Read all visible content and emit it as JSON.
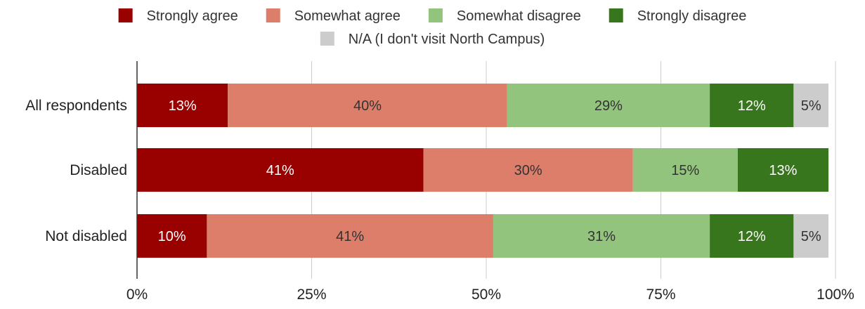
{
  "chart_data": {
    "type": "bar",
    "orientation": "horizontal",
    "stacked": "percent",
    "categories": [
      "All respondents",
      "Disabled",
      "Not disabled"
    ],
    "series": [
      {
        "name": "Strongly agree",
        "values": [
          13,
          41,
          10
        ],
        "labels": [
          "13%",
          "41%",
          "10%"
        ],
        "color": "#990000",
        "label_color": "#ffffff"
      },
      {
        "name": "Somewhat agree",
        "values": [
          40,
          30,
          41
        ],
        "labels": [
          "40%",
          "30%",
          "41%"
        ],
        "color": "#dd7e6b",
        "label_color": "#333333"
      },
      {
        "name": "Somewhat disagree",
        "values": [
          29,
          15,
          31
        ],
        "labels": [
          "29%",
          "15%",
          "31%"
        ],
        "color": "#93c47d",
        "label_color": "#333333"
      },
      {
        "name": "Strongly disagree",
        "values": [
          12,
          13,
          12
        ],
        "labels": [
          "12%",
          "13%",
          "12%"
        ],
        "color": "#38761d",
        "label_color": "#ffffff"
      },
      {
        "name": "N/A (I don't visit North Campus)",
        "values": [
          5,
          0,
          5
        ],
        "labels": [
          "5%",
          "",
          "5%"
        ],
        "color": "#cccccc",
        "label_color": "#333333"
      }
    ],
    "x_ticks": [
      "0%",
      "25%",
      "50%",
      "75%",
      "100%"
    ],
    "xlim": [
      0,
      100
    ],
    "grid": true,
    "legend_position": "top",
    "title": "",
    "xlabel": "",
    "ylabel": ""
  }
}
